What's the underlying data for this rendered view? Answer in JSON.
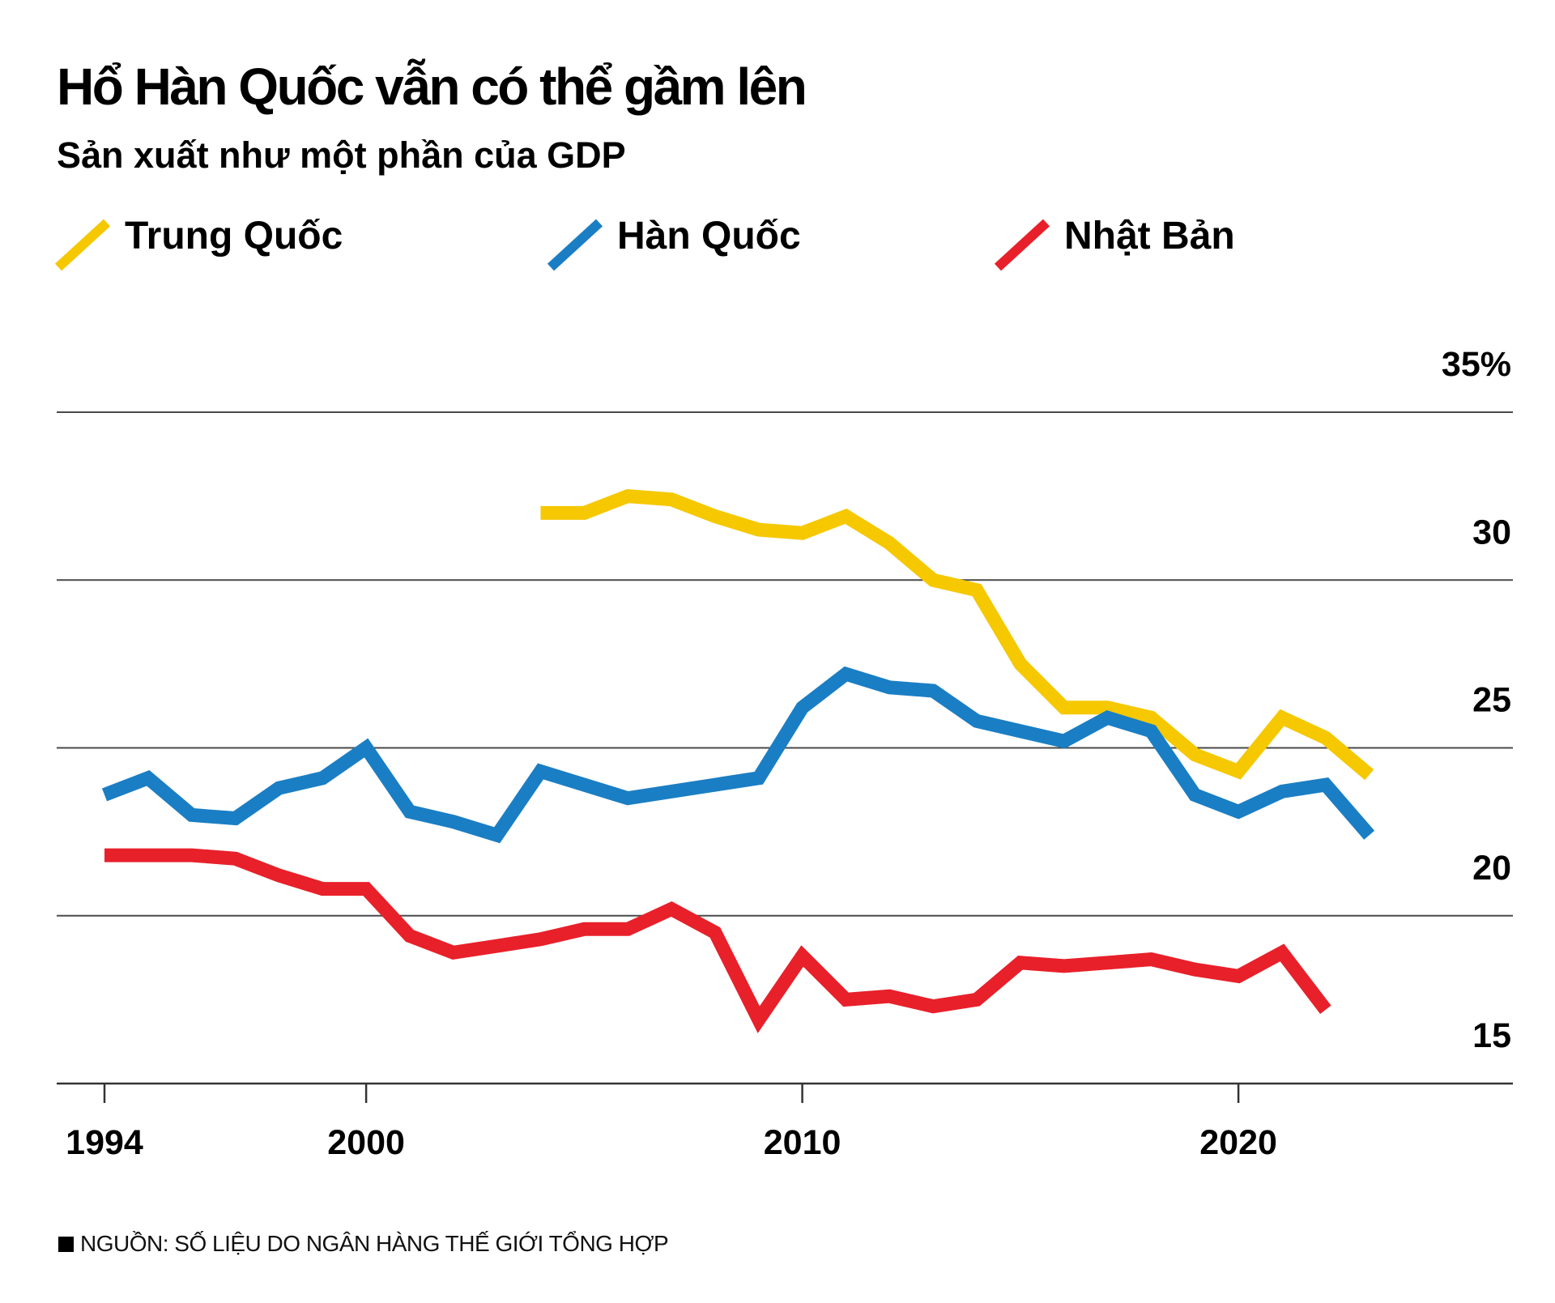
{
  "chart_data": {
    "type": "line",
    "title": "Hổ Hàn Quốc vẫn có thể gầm lên",
    "subtitle": "Sản xuất như một phần của GDP",
    "source": "NGUỒN: SỐ LIỆU DO NGÂN HÀNG THẾ GIỚI TỔNG HỢP",
    "xlim": [
      1994,
      2026
    ],
    "ylim": [
      15,
      35
    ],
    "x_ticks": [
      1994,
      2000,
      2010,
      2020
    ],
    "x_tick_labels": [
      "1994",
      "2000",
      "2010",
      "2020"
    ],
    "y_ticks": [
      35,
      30,
      25,
      20,
      15
    ],
    "y_tick_labels": [
      "35%",
      "30",
      "25",
      "20",
      "15"
    ],
    "ylabel": "",
    "xlabel": "",
    "grid": true,
    "legend_position": "top",
    "series": [
      {
        "name": "Trung Quốc",
        "color": "#f5c800",
        "x": [
          2004,
          2005,
          2006,
          2007,
          2008,
          2009,
          2010,
          2011,
          2012,
          2013,
          2014,
          2015,
          2016,
          2017,
          2018,
          2019,
          2020,
          2021,
          2022,
          2023
        ],
        "values": [
          32.0,
          32.0,
          32.5,
          32.4,
          31.9,
          31.5,
          31.4,
          31.9,
          31.1,
          30.0,
          29.7,
          27.5,
          26.2,
          26.2,
          25.9,
          24.8,
          24.3,
          25.9,
          25.3,
          24.2
        ]
      },
      {
        "name": "Hàn Quốc",
        "color": "#1a7ec4",
        "x": [
          1994,
          1995,
          1996,
          1997,
          1998,
          1999,
          2000,
          2001,
          2002,
          2003,
          2004,
          2005,
          2006,
          2007,
          2008,
          2009,
          2010,
          2011,
          2012,
          2013,
          2014,
          2015,
          2016,
          2017,
          2018,
          2019,
          2020,
          2021,
          2022,
          2023
        ],
        "values": [
          23.6,
          24.1,
          23.0,
          22.9,
          23.8,
          24.1,
          25.0,
          23.1,
          22.8,
          22.4,
          24.3,
          23.9,
          23.5,
          23.7,
          23.9,
          24.1,
          26.2,
          27.2,
          26.8,
          26.7,
          25.8,
          25.5,
          25.2,
          25.9,
          25.5,
          23.6,
          23.1,
          23.7,
          23.9,
          22.4
        ]
      },
      {
        "name": "Nhật Bản",
        "color": "#e8202a",
        "x": [
          1994,
          1995,
          1996,
          1997,
          1998,
          1999,
          2000,
          2001,
          2002,
          2003,
          2004,
          2005,
          2006,
          2007,
          2008,
          2009,
          2010,
          2011,
          2012,
          2013,
          2014,
          2015,
          2016,
          2017,
          2018,
          2019,
          2020,
          2021,
          2022
        ],
        "values": [
          21.8,
          21.8,
          21.8,
          21.7,
          21.2,
          20.8,
          20.8,
          19.4,
          18.9,
          19.1,
          19.3,
          19.6,
          19.6,
          20.2,
          19.5,
          16.9,
          18.8,
          17.5,
          17.6,
          17.3,
          17.5,
          18.6,
          18.5,
          18.6,
          18.7,
          18.4,
          18.2,
          18.9,
          17.2
        ]
      }
    ]
  }
}
